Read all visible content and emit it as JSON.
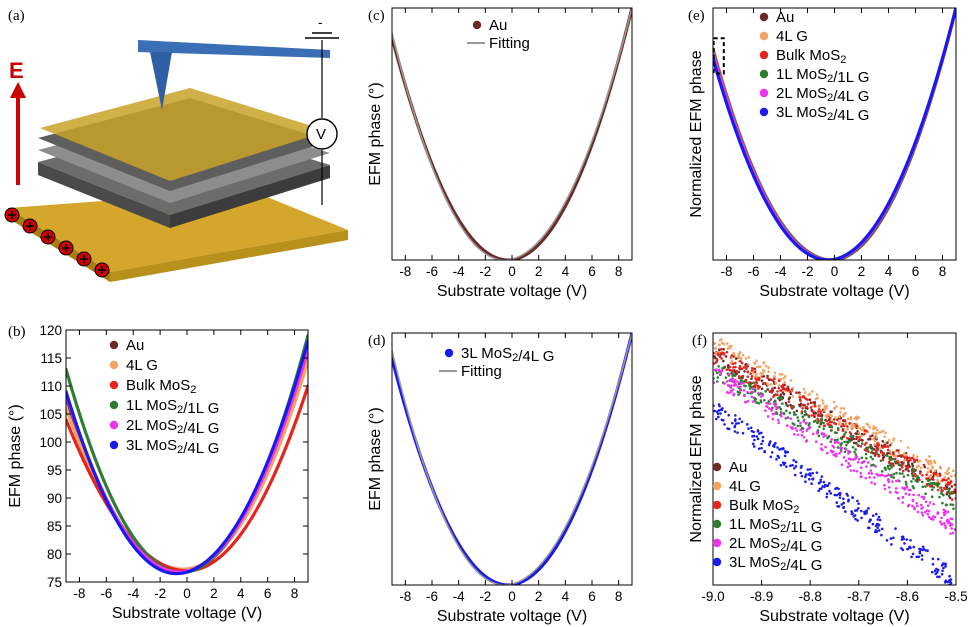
{
  "panels": {
    "a": {
      "label": "(a)",
      "field_label": "E",
      "voltmeter_label": "V"
    },
    "b": {
      "label": "(b)"
    },
    "c": {
      "label": "(c)"
    },
    "d": {
      "label": "(d)"
    },
    "e": {
      "label": "(e)"
    },
    "f": {
      "label": "(f)"
    }
  },
  "colors": {
    "Au": "#6b2a25",
    "4L G": "#f4a460",
    "Bulk MoS2": "#e8221c",
    "1L MoS2/1L G": "#2e7d32",
    "2L MoS2/4L G": "#ee33ee",
    "3L MoS2/4L G": "#1a1aee",
    "Fitting": "#9a9a9a",
    "tip": "#3b6fb5",
    "substrate": "#d4a72c",
    "charge": "#cc0000"
  },
  "chart_data": [
    {
      "id": "b",
      "type": "line",
      "xlabel": "Substrate voltage (V)",
      "ylabel": "EFM phase (°)",
      "xlim": [
        -9,
        9
      ],
      "ylim": [
        75,
        120
      ],
      "xticks": [
        "-8",
        "-6",
        "-4",
        "-2",
        "0",
        "2",
        "4",
        "6",
        "8"
      ],
      "yticks": [
        "75",
        "80",
        "85",
        "90",
        "95",
        "100",
        "105",
        "110",
        "115",
        "120"
      ],
      "legend_position": "top-left",
      "series": [
        {
          "name": "Au",
          "x0": -0.5,
          "ymin": 76.7,
          "y_at_-9": 108.0,
          "y_at_9": 116.0
        },
        {
          "name": "4L G",
          "x0": -0.3,
          "ymin": 77.3,
          "y_at_-9": 106.0,
          "y_at_9": 114.5
        },
        {
          "name": "Bulk MoS2",
          "x0": 0.0,
          "ymin": 77.0,
          "y_at_-9": 104.0,
          "y_at_9": 110.0
        },
        {
          "name": "1L MoS2/1L G",
          "x0": -0.4,
          "ymin": 76.7,
          "y_at_-9": 113.0,
          "y_at_9": 119.0
        },
        {
          "name": "2L MoS2/4L G",
          "x0": -0.6,
          "ymin": 76.8,
          "y_at_-9": 108.5,
          "y_at_9": 116.5
        },
        {
          "name": "3L MoS2/4L G",
          "x0": -0.8,
          "ymin": 76.5,
          "y_at_-9": 109.0,
          "y_at_9": 118.0
        }
      ]
    },
    {
      "id": "c",
      "type": "scatter",
      "xlabel": "Substrate voltage (V)",
      "ylabel": "EFM phase (°)",
      "xlim": [
        -9,
        9
      ],
      "ylim": [
        0,
        1
      ],
      "xticks": [
        "-8",
        "-6",
        "-4",
        "-2",
        "0",
        "2",
        "4",
        "6",
        "8"
      ],
      "legend_position": "top-left",
      "series": [
        {
          "name": "Au",
          "x0": -0.3,
          "ymin": 0.0,
          "y_at_-9": 0.885,
          "y_at_9": 1.0
        },
        {
          "name": "Fitting",
          "x0": -0.6,
          "ymin": 0.0,
          "y_at_-9": 0.9,
          "y_at_9": 1.0
        }
      ]
    },
    {
      "id": "d",
      "type": "scatter",
      "xlabel": "Substrate voltage (V)",
      "ylabel": "EFM phase (°)",
      "xlim": [
        -9,
        9
      ],
      "ylim": [
        0,
        1
      ],
      "xticks": [
        "-8",
        "-6",
        "-4",
        "-2",
        "0",
        "2",
        "4",
        "6",
        "8"
      ],
      "legend_position": "top-left",
      "series": [
        {
          "name": "3L MoS2/4L G",
          "x0": -0.3,
          "ymin": 0.0,
          "y_at_-9": 0.9,
          "y_at_9": 1.0
        },
        {
          "name": "Fitting",
          "x0": -0.6,
          "ymin": 0.0,
          "y_at_-9": 0.93,
          "y_at_9": 1.0
        }
      ]
    },
    {
      "id": "e",
      "type": "line",
      "xlabel": "Substrate voltage (V)",
      "ylabel": "Normalized EFM phase",
      "xlim": [
        -9,
        9
      ],
      "ylim": [
        0,
        1
      ],
      "xticks": [
        "-8",
        "-6",
        "-4",
        "-2",
        "0",
        "2",
        "4",
        "6",
        "8"
      ],
      "legend_position": "top-left",
      "annotation": "dashed box near x = -8.5",
      "series": [
        {
          "name": "Au",
          "x0": -0.2,
          "ymin": 0.0,
          "y_at_-9": 0.82,
          "y_at_9": 1.0
        },
        {
          "name": "4L G",
          "x0": -0.3,
          "ymin": 0.0,
          "y_at_-9": 0.84,
          "y_at_9": 1.0
        },
        {
          "name": "Bulk MoS2",
          "x0": -0.3,
          "ymin": 0.0,
          "y_at_-9": 0.83,
          "y_at_9": 1.0
        },
        {
          "name": "1L MoS2/1L G",
          "x0": -0.3,
          "ymin": 0.0,
          "y_at_-9": 0.83,
          "y_at_9": 1.0
        },
        {
          "name": "2L MoS2/4L G",
          "x0": -0.4,
          "ymin": 0.0,
          "y_at_-9": 0.82,
          "y_at_9": 1.0
        },
        {
          "name": "3L MoS2/4L G",
          "x0": -0.5,
          "ymin": 0.0,
          "y_at_-9": 0.8,
          "y_at_9": 1.0
        }
      ]
    },
    {
      "id": "f",
      "type": "scatter",
      "xlabel": "Substrate voltage (V)",
      "ylabel": "Normalized EFM phase",
      "xlim": [
        -9.0,
        -8.5
      ],
      "ylim": [
        0,
        1
      ],
      "xticks": [
        "-9.0",
        "-8.9",
        "-8.8",
        "-8.7",
        "-8.6",
        "-8.5"
      ],
      "legend_position": "bottom-left",
      "series": [
        {
          "name": "Au",
          "y_at_-9.0": 0.92,
          "y_at_-8.5": 0.37
        },
        {
          "name": "4L G",
          "y_at_-9.0": 0.96,
          "y_at_-8.5": 0.41
        },
        {
          "name": "Bulk MoS2",
          "y_at_-9.0": 0.92,
          "y_at_-8.5": 0.37
        },
        {
          "name": "1L MoS2/1L G",
          "y_at_-9.0": 0.85,
          "y_at_-8.5": 0.33
        },
        {
          "name": "2L MoS2/4L G",
          "y_at_-9.0": 0.84,
          "y_at_-8.5": 0.23
        },
        {
          "name": "3L MoS2/4L G",
          "y_at_-9.0": 0.7,
          "y_at_-8.5": 0.02
        }
      ]
    }
  ]
}
